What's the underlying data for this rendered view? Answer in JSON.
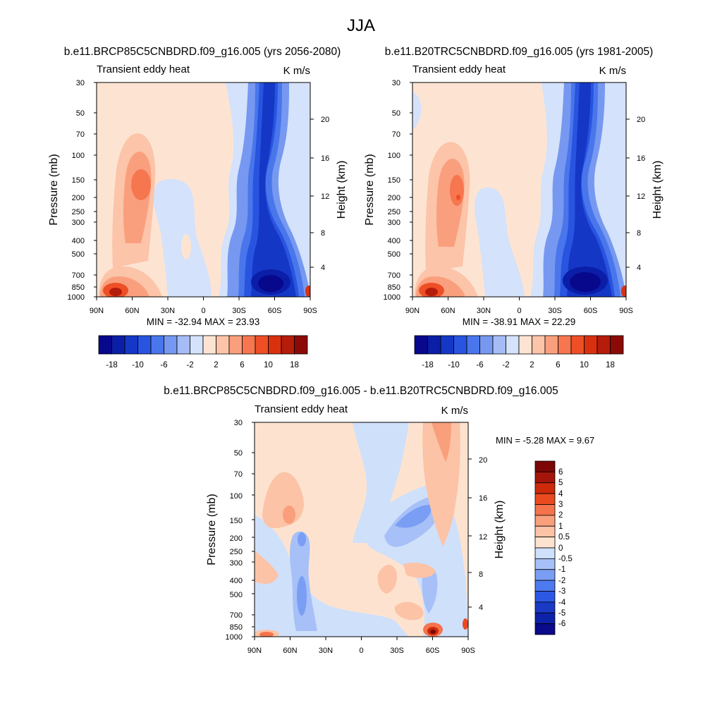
{
  "figure": {
    "title": "JJA"
  },
  "colors": {
    "diverging_18": [
      "#08088c",
      "#0b1ea8",
      "#1537c6",
      "#2854e0",
      "#4a76ec",
      "#7698f0",
      "#a5bcf5",
      "#d4e2fb",
      "#fde4d2",
      "#fcc4a9",
      "#fa9f7d",
      "#f6764f",
      "#ee4f26",
      "#d9310f",
      "#b51c0a",
      "#8c0a05"
    ],
    "diverging_diff": [
      "#0a0a8a",
      "#0e22a8",
      "#1a3ac6",
      "#2c58e4",
      "#4e7af0",
      "#7a9ef4",
      "#a7c0f7",
      "#cfe0fb",
      "#fde3cf",
      "#fcc3a6",
      "#f99f7b",
      "#f5744c",
      "#ea4a20",
      "#cd2a0c",
      "#a5160a",
      "#7d0606"
    ]
  },
  "chart_data": [
    {
      "type": "heatmap",
      "panel": "top-left",
      "title": "b.e11.BRCP85C5CNBDRD.f09_g16.005 (yrs 2056-2080)",
      "left_label": "Transient eddy heat",
      "right_label": "K m/s",
      "xlabel": "",
      "ylabel": "Pressure (mb)",
      "y2label": "Height (km)",
      "x_ticks": [
        "90N",
        "60N",
        "30N",
        "0",
        "30S",
        "60S",
        "90S"
      ],
      "y_ticks": [
        "30",
        "50",
        "70",
        "100",
        "150",
        "200",
        "250",
        "300",
        "400",
        "500",
        "700",
        "850",
        "1000"
      ],
      "y2_ticks": [
        "20",
        "16",
        "12",
        "8",
        "4"
      ],
      "min_max": "MIN = -32.94  MAX = 23.93",
      "colorbar_labels": [
        "-18",
        "-10",
        "-6",
        "-2",
        "2",
        "6",
        "10",
        "18"
      ]
    },
    {
      "type": "heatmap",
      "panel": "top-right",
      "title": "b.e11.B20TRC5CNBDRD.f09_g16.005 (yrs 1981-2005)",
      "left_label": "Transient eddy heat",
      "right_label": "K m/s",
      "xlabel": "",
      "ylabel": "Pressure (mb)",
      "y2label": "Height (km)",
      "x_ticks": [
        "90N",
        "60N",
        "30N",
        "0",
        "30S",
        "60S",
        "90S"
      ],
      "y_ticks": [
        "30",
        "50",
        "70",
        "100",
        "150",
        "200",
        "250",
        "300",
        "400",
        "500",
        "700",
        "850",
        "1000"
      ],
      "y2_ticks": [
        "20",
        "16",
        "12",
        "8",
        "4"
      ],
      "min_max": "MIN = -38.91  MAX =  22.29",
      "colorbar_labels": [
        "-18",
        "-10",
        "-6",
        "-2",
        "2",
        "6",
        "10",
        "18"
      ]
    },
    {
      "type": "heatmap",
      "panel": "bottom",
      "title": "b.e11.BRCP85C5CNBDRD.f09_g16.005 - b.e11.B20TRC5CNBDRD.f09_g16.005",
      "left_label": "Transient eddy heat",
      "right_label": "K m/s",
      "xlabel": "",
      "ylabel": "Pressure (mb)",
      "y2label": "Height (km)",
      "x_ticks": [
        "90N",
        "60N",
        "30N",
        "0",
        "30S",
        "60S",
        "90S"
      ],
      "y_ticks": [
        "30",
        "50",
        "70",
        "100",
        "150",
        "200",
        "250",
        "300",
        "400",
        "500",
        "700",
        "850",
        "1000"
      ],
      "y2_ticks": [
        "20",
        "16",
        "12",
        "8",
        "4"
      ],
      "min_max": "MIN =  -5.28  MAX =   9.67",
      "colorbar_labels": [
        "6",
        "5",
        "4",
        "3",
        "2",
        "1",
        "0.5",
        "0",
        "-0.5",
        "-1",
        "-2",
        "-3",
        "-4",
        "-5",
        "-6"
      ]
    }
  ]
}
